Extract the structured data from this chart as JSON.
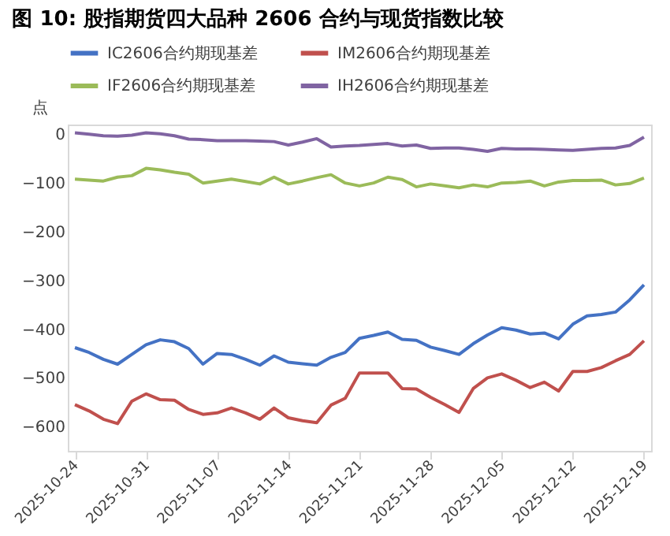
{
  "chart_data": {
    "type": "line",
    "title": "图 10:  股指期货四大品种 2606 合约与现货指数比较",
    "ylabel": "点",
    "categories": [
      "2025-10-24",
      null,
      null,
      null,
      null,
      "2025-10-31",
      null,
      null,
      null,
      null,
      "2025-11-07",
      null,
      null,
      null,
      null,
      "2025-11-14",
      null,
      null,
      null,
      null,
      "2025-11-21",
      null,
      null,
      null,
      null,
      "2025-11-28",
      null,
      null,
      null,
      null,
      "2025-12-05",
      null,
      null,
      null,
      null,
      "2025-12-12",
      null,
      null,
      null,
      null,
      "2025-12-19"
    ],
    "series": [
      {
        "name": "IC2606合约期现基差",
        "color": "#4472c4",
        "values": [
          -438,
          -448,
          -462,
          -472,
          -452,
          -432,
          -422,
          -426,
          -440,
          -472,
          -450,
          -452,
          -462,
          -474,
          -455,
          -468,
          -471,
          -474,
          -458,
          -448,
          -419,
          -413,
          -406,
          -421,
          -423,
          -437,
          -444,
          -452,
          -430,
          -412,
          -397,
          -402,
          -410,
          -408,
          -420,
          -390,
          -373,
          -370,
          -365,
          -340,
          -309
        ]
      },
      {
        "name": "IM2606合约期现基差",
        "color": "#c0504d",
        "values": [
          -555,
          -568,
          -585,
          -594,
          -548,
          -533,
          -545,
          -546,
          -565,
          -575,
          -572,
          -562,
          -572,
          -585,
          -562,
          -582,
          -588,
          -592,
          -556,
          -542,
          -490,
          -490,
          -490,
          -522,
          -523,
          -540,
          -555,
          -571,
          -522,
          -500,
          -492,
          -505,
          -520,
          -509,
          -527,
          -487,
          -487,
          -479,
          -465,
          -452,
          -424
        ]
      },
      {
        "name": "IF2606合约期现基差",
        "color": "#9bbb59",
        "values": [
          -92,
          -94,
          -96,
          -88,
          -85,
          -70,
          -73,
          -78,
          -82,
          -100,
          -96,
          -92,
          -97,
          -102,
          -88,
          -102,
          -96,
          -89,
          -83,
          -100,
          -106,
          -100,
          -88,
          -93,
          -108,
          -102,
          -106,
          -110,
          -104,
          -108,
          -100,
          -99,
          -96,
          -106,
          -98,
          -95,
          -95,
          -94,
          -104,
          -101,
          -90
        ]
      },
      {
        "name": "IH2606合约期现基差",
        "color": "#8064a2",
        "values": [
          3,
          0,
          -3,
          -4,
          -2,
          3,
          1,
          -3,
          -10,
          -11,
          -13,
          -13,
          -13,
          -14,
          -15,
          -22,
          -16,
          -9,
          -26,
          -24,
          -23,
          -21,
          -19,
          -24,
          -22,
          -29,
          -28,
          -28,
          -31,
          -35,
          -29,
          -30,
          -30,
          -31,
          -32,
          -33,
          -31,
          -29,
          -28,
          -23,
          -6
        ]
      }
    ],
    "ylim": [
      -650,
      20
    ],
    "yticks": [
      -600,
      -500,
      -400,
      -300,
      -200,
      -100,
      0
    ],
    "grid": false,
    "legend": "top",
    "line_style": "solid",
    "marker": "none"
  }
}
